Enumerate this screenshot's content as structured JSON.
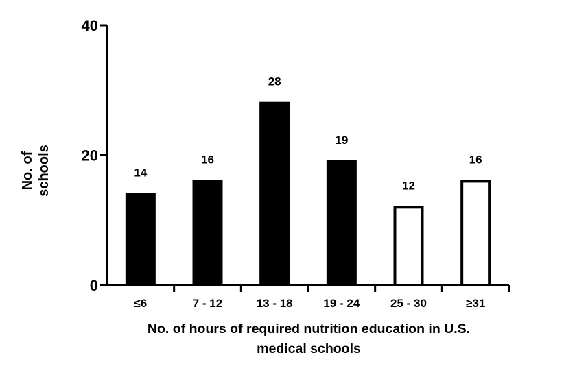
{
  "chart_data": {
    "type": "bar",
    "title": "",
    "categories": [
      "≤6",
      "7 - 12",
      "13 - 18",
      "19 - 24",
      "25 - 30",
      "≥31"
    ],
    "values": [
      14,
      16,
      28,
      19,
      12,
      16
    ],
    "fills": [
      "#000000",
      "#000000",
      "#000000",
      "#000000",
      "#ffffff",
      "#ffffff"
    ],
    "data_labels": [
      "14",
      "16",
      "28",
      "19",
      "12",
      "16"
    ],
    "xlabel_line1": "No. of hours of required nutrition education in U.S.",
    "xlabel_line2": "medical schools",
    "ylabel_line1": "No. of",
    "ylabel_line2": "schools",
    "ylim": [
      0,
      40
    ],
    "yticks": [
      0,
      20,
      40
    ],
    "ytick_labels": [
      "0",
      "20",
      "40"
    ],
    "grid": false,
    "legend": "none"
  }
}
